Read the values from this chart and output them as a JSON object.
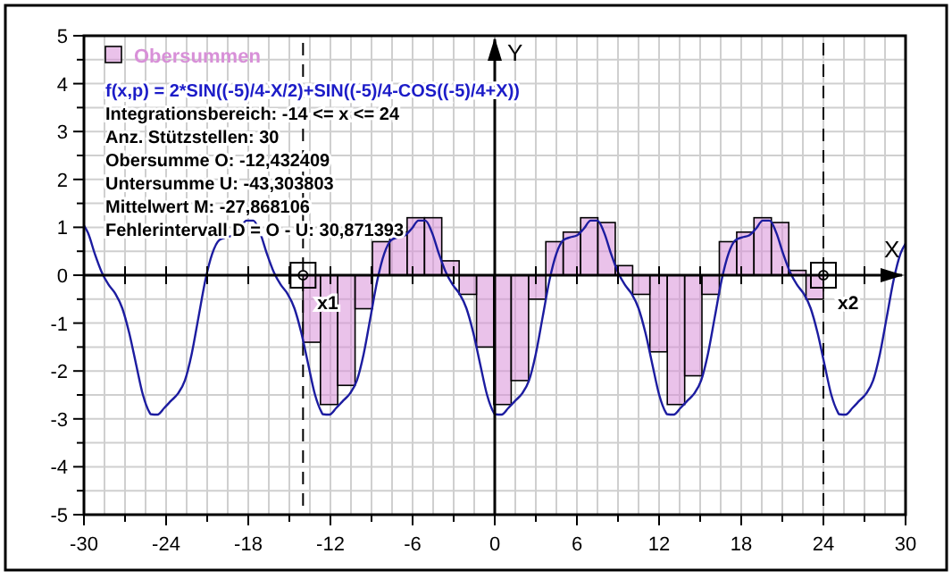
{
  "chart_data": {
    "type": "histogram",
    "subtitle": "f(x,p) = 2*SIN((-5)/4-X/2)+SIN((-5)/4-COS((-5)/4+X))",
    "xlabel": "X",
    "ylabel": "Y",
    "xlim": [
      -30,
      30
    ],
    "ylim": [
      -5,
      5
    ],
    "xticks": [
      -30,
      {
        "value": -27,
        "label": null
      },
      -24,
      {
        "value": -21,
        "label": null
      },
      -18,
      {
        "value": -15,
        "label": null
      },
      -12,
      {
        "value": -9,
        "label": null
      },
      -6,
      {
        "value": -3,
        "label": null
      },
      0,
      {
        "value": 3,
        "label": null
      },
      6,
      {
        "value": 9,
        "label": null
      },
      12,
      {
        "value": 15,
        "label": null
      },
      18,
      {
        "value": 21,
        "label": null
      },
      24,
      {
        "value": 27,
        "label": null
      },
      30
    ],
    "yticks": [
      -5,
      {
        "value": -4.5,
        "label": null
      },
      -4,
      {
        "value": -3.5,
        "label": null
      },
      -3,
      {
        "value": -2.5,
        "label": null
      },
      -2,
      {
        "value": -1.5,
        "label": null
      },
      -1,
      {
        "value": -0.5,
        "label": null
      },
      0,
      {
        "value": 0.5,
        "label": null
      },
      1,
      {
        "value": 1.5,
        "label": null
      },
      2,
      {
        "value": 2.5,
        "label": null
      },
      3,
      {
        "value": 3.5,
        "label": null
      },
      4,
      {
        "value": 4.5,
        "label": null
      },
      5
    ],
    "grid": true,
    "legend": "top left",
    "series": [
      {
        "name": "Obersummen",
        "color": "#d890d8",
        "bins": [
          -14,
          -12.73,
          -11.47,
          -10.2,
          -8.93,
          -7.67,
          -6.4,
          -5.13,
          -3.87,
          -2.6,
          -1.33,
          -0.07,
          1.2,
          2.47,
          3.73,
          5,
          6.27,
          7.53,
          8.8,
          10.07,
          11.33,
          12.6,
          13.87,
          15.13,
          16.4,
          17.67,
          18.93,
          20.2,
          21.47,
          22.73,
          24
        ],
        "values": [
          -1.4,
          -2.7,
          -2.3,
          -0.7,
          0.7,
          0.9,
          1.2,
          1.2,
          0.3,
          -0.4,
          -1.5,
          -2.7,
          -2.2,
          -0.5,
          0.7,
          0.9,
          1.2,
          1.1,
          0.2,
          -0.4,
          -1.6,
          -2.7,
          -2.1,
          -0.4,
          0.7,
          0.9,
          1.2,
          1.1,
          0.1,
          -0.5
        ]
      },
      {
        "type": "line",
        "color": "#1c1ca0",
        "x": [
          -30,
          -29.7,
          -29.2,
          -28.7,
          -28.2,
          -27.7,
          -27.2,
          -26.7,
          -26.2,
          -25.7,
          -25.2,
          -25.13,
          -24.63,
          -24.13,
          -23.63,
          -23.13,
          -22.63,
          -22.13,
          -21.63,
          -21.13,
          -20.63,
          -20.13,
          -19.63,
          -19.13,
          -18.63,
          -18.13,
          -17.63,
          -17.13,
          -16.63,
          -16.13,
          -15.63,
          -15.13,
          -14.63,
          -14.13,
          -13.63,
          -13.13,
          -12.63,
          -12.57,
          -12.07,
          -11.57,
          -11.07,
          -10.57,
          -10.07,
          -9.57,
          -9.07,
          -8.57,
          -8.07,
          -7.57,
          -7.07,
          -6.57,
          -6.07,
          -5.57,
          -5.07,
          -4.57,
          -4.07,
          -3.57,
          -3.07,
          -2.57,
          -2.07,
          -1.57,
          -1.07,
          -0.57,
          -0.07,
          0,
          0.5,
          1,
          1.5,
          2,
          2.5,
          3,
          3.5,
          4,
          4.5,
          5,
          5.5,
          6,
          6.5,
          7,
          7.5,
          8,
          8.5,
          9,
          9.5,
          10,
          10.5,
          11,
          11.5,
          12,
          12.5,
          12.57,
          13.07,
          13.57,
          14.07,
          14.57,
          15.07,
          15.57,
          16.07,
          16.57,
          17.07,
          17.57,
          18.07,
          18.57,
          19.07,
          19.57,
          20.07,
          20.57,
          21.07,
          21.57,
          22.07,
          22.57,
          23.07,
          23.57,
          24.07,
          24.57,
          25.07,
          25.13,
          25.63,
          26.13,
          26.63,
          27.13,
          27.63,
          28.13,
          28.63,
          29.13,
          29.63,
          30
        ],
        "values": [
          1.04,
          0.88,
          0.44,
          0.06,
          -0.2,
          -0.39,
          -0.69,
          -1.2,
          -1.85,
          -2.49,
          -2.87,
          -2.9,
          -2.91,
          -2.77,
          -2.62,
          -2.47,
          -2.2,
          -1.64,
          -0.87,
          -0.1,
          0.45,
          0.73,
          0.79,
          0.83,
          0.97,
          1.14,
          1.14,
          0.88,
          0.44,
          0.06,
          -0.2,
          -0.39,
          -0.69,
          -1.2,
          -1.85,
          -2.49,
          -2.87,
          -2.9,
          -2.91,
          -2.77,
          -2.62,
          -2.47,
          -2.2,
          -1.64,
          -0.87,
          -0.1,
          0.45,
          0.73,
          0.79,
          0.83,
          0.97,
          1.14,
          1.14,
          0.88,
          0.44,
          0.06,
          -0.2,
          -0.39,
          -0.69,
          -1.2,
          -1.85,
          -2.49,
          -2.87,
          -2.9,
          -2.91,
          -2.77,
          -2.62,
          -2.47,
          -2.2,
          -1.64,
          -0.87,
          -0.1,
          0.45,
          0.73,
          0.79,
          0.83,
          0.97,
          1.14,
          1.14,
          0.88,
          0.44,
          0.06,
          -0.2,
          -0.39,
          -0.69,
          -1.2,
          -1.85,
          -2.49,
          -2.87,
          -2.9,
          -2.91,
          -2.77,
          -2.62,
          -2.47,
          -2.2,
          -1.64,
          -0.87,
          -0.1,
          0.45,
          0.73,
          0.79,
          0.83,
          0.97,
          1.14,
          1.14,
          0.88,
          0.44,
          0.06,
          -0.2,
          -0.39,
          -0.69,
          -1.2,
          -1.85,
          -2.49,
          -2.87,
          -2.9,
          -2.91,
          -2.77,
          -2.62,
          -2.47,
          -2.2,
          -1.64,
          -0.87,
          -0.1,
          0.45,
          0.66
        ]
      }
    ],
    "ref_lines": [
      {
        "axis": "x",
        "value": -14,
        "label": null,
        "color": "#000000",
        "line_style": "dashed"
      },
      {
        "axis": "x",
        "value": 24,
        "label": null,
        "color": "#000000",
        "line_style": "dashed"
      }
    ],
    "annotations": [
      "Integrationsbereich: -14 <= x <= 24",
      "Anz. Stützstellen: 30",
      "Obersumme O: -12,432409",
      "Untersumme U: -43,303803",
      "Mittelwert M: -27,868106",
      "Fehlerintervall D = O - U: 30,871393",
      {
        "text": "x1",
        "x": -14,
        "y": 0
      },
      {
        "text": "x2",
        "x": 24,
        "y": 0
      }
    ]
  }
}
